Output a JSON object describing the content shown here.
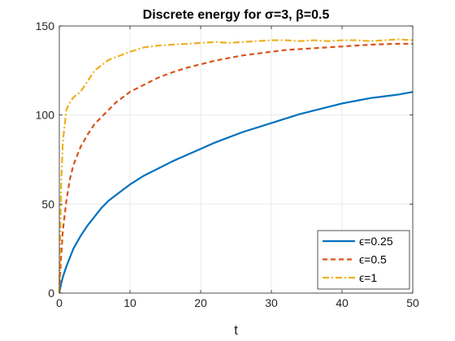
{
  "chart_data": {
    "type": "line",
    "title": "Discrete energy for σ=3, β=0.5",
    "xlabel": "t",
    "ylabel": "",
    "xlim": [
      0,
      50
    ],
    "ylim": [
      0,
      150
    ],
    "xticks": [
      0,
      10,
      20,
      30,
      40,
      50
    ],
    "yticks": [
      0,
      50,
      100,
      150
    ],
    "grid": true,
    "legend_position": "bottom-right",
    "x": [
      0,
      0.25,
      0.5,
      1,
      1.5,
      2,
      3,
      4,
      5,
      6,
      7,
      8,
      9,
      10,
      12,
      14,
      16,
      18,
      20,
      22,
      24,
      26,
      28,
      30,
      32,
      34,
      36,
      38,
      40,
      42,
      44,
      46,
      48,
      50
    ],
    "series": [
      {
        "name": "ϵ=0.25",
        "color": "#0072BD",
        "dash": "solid",
        "values": [
          0,
          5,
          9,
          15,
          20,
          25,
          32,
          38,
          43,
          48,
          52,
          55,
          58,
          61,
          66,
          70,
          74,
          77.5,
          81,
          84.5,
          87.5,
          90.5,
          93,
          95.5,
          98,
          100.5,
          102.5,
          104.5,
          106.5,
          108,
          109.5,
          110.5,
          111.5,
          113
        ]
      },
      {
        "name": "ϵ=0.5",
        "color": "#D95319",
        "dash": "dashed",
        "values": [
          0,
          20,
          35,
          52,
          64,
          72,
          82,
          89,
          95,
          99,
          103,
          107,
          110,
          113,
          117,
          121,
          124,
          126.5,
          128.5,
          130.5,
          132,
          133.5,
          134.5,
          135.5,
          136.5,
          137,
          137.5,
          138,
          138.5,
          139,
          139.5,
          139.8,
          140,
          140
        ]
      },
      {
        "name": "ϵ=1",
        "color": "#EDB120",
        "dash": "dashdot",
        "values": [
          0,
          60,
          85,
          103,
          107,
          110,
          113,
          119,
          125,
          128,
          131,
          132.5,
          134,
          135.5,
          138,
          139,
          139.5,
          140,
          140.5,
          141,
          140.5,
          141,
          141.5,
          142,
          142,
          141.5,
          142,
          141.5,
          142,
          142,
          141.5,
          142,
          142.5,
          142
        ]
      }
    ]
  }
}
